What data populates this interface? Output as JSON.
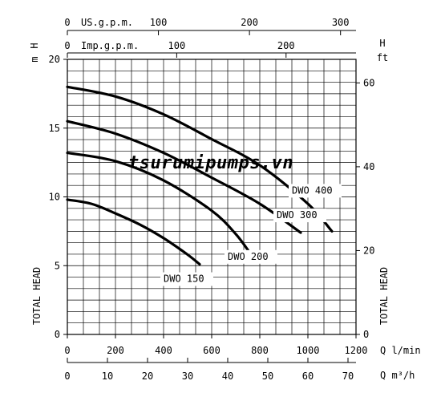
{
  "chart_data": {
    "type": "line",
    "x_unit": "Q l/min",
    "xlim": [
      0,
      1200
    ],
    "ylim": [
      0,
      20
    ],
    "grid": true,
    "y_left": {
      "label": "TOTAL HEAD",
      "unit": "m",
      "unit_header": "H",
      "ticks": [
        "0",
        "5",
        "10",
        "15",
        "20"
      ]
    },
    "y_right": {
      "label": "TOTAL HEAD",
      "unit": "ft",
      "unit_header": "H",
      "ticks": [
        "0",
        "20",
        "40",
        "60"
      ],
      "tick_values_ft": [
        0,
        20,
        40,
        60
      ]
    },
    "x_axes": {
      "lmin": {
        "label": "Q l/min",
        "ticks": [
          "0",
          "200",
          "400",
          "600",
          "800",
          "1000",
          "1200"
        ],
        "tick_values": [
          0,
          200,
          400,
          600,
          800,
          1000,
          1200
        ]
      },
      "m3h": {
        "label": "Q m³/h",
        "ticks": [
          "0",
          "10",
          "20",
          "30",
          "40",
          "50",
          "60",
          "70"
        ],
        "tick_values": [
          0,
          10,
          20,
          30,
          40,
          50,
          60,
          70
        ]
      },
      "usgpm": {
        "label": "US.g.p.m.",
        "ticks": [
          "0",
          "100",
          "200",
          "300"
        ],
        "tick_values": [
          0,
          100,
          200,
          300
        ]
      },
      "impgpm": {
        "label": "Imp.g.p.m.",
        "ticks": [
          "0",
          "100",
          "200"
        ],
        "tick_values": [
          0,
          100,
          200
        ]
      }
    },
    "series": [
      {
        "name": "DWO 150",
        "x": [
          0,
          100,
          200,
          300,
          400,
          500,
          550
        ],
        "y": [
          9.8,
          9.5,
          8.8,
          8.0,
          7.0,
          5.8,
          5.1
        ]
      },
      {
        "name": "DWO 200",
        "x": [
          0,
          200,
          400,
          600,
          700,
          760
        ],
        "y": [
          13.2,
          12.6,
          11.2,
          9.0,
          7.3,
          5.9
        ]
      },
      {
        "name": "DWO 300",
        "x": [
          0,
          200,
          400,
          600,
          800,
          970
        ],
        "y": [
          15.5,
          14.6,
          13.2,
          11.4,
          9.5,
          7.4
        ]
      },
      {
        "name": "DWO 400",
        "x": [
          0,
          200,
          400,
          600,
          800,
          1000,
          1100
        ],
        "y": [
          18.0,
          17.3,
          16.0,
          14.2,
          12.3,
          9.5,
          7.5
        ]
      }
    ]
  },
  "watermark": "tsurumipumps.vn"
}
